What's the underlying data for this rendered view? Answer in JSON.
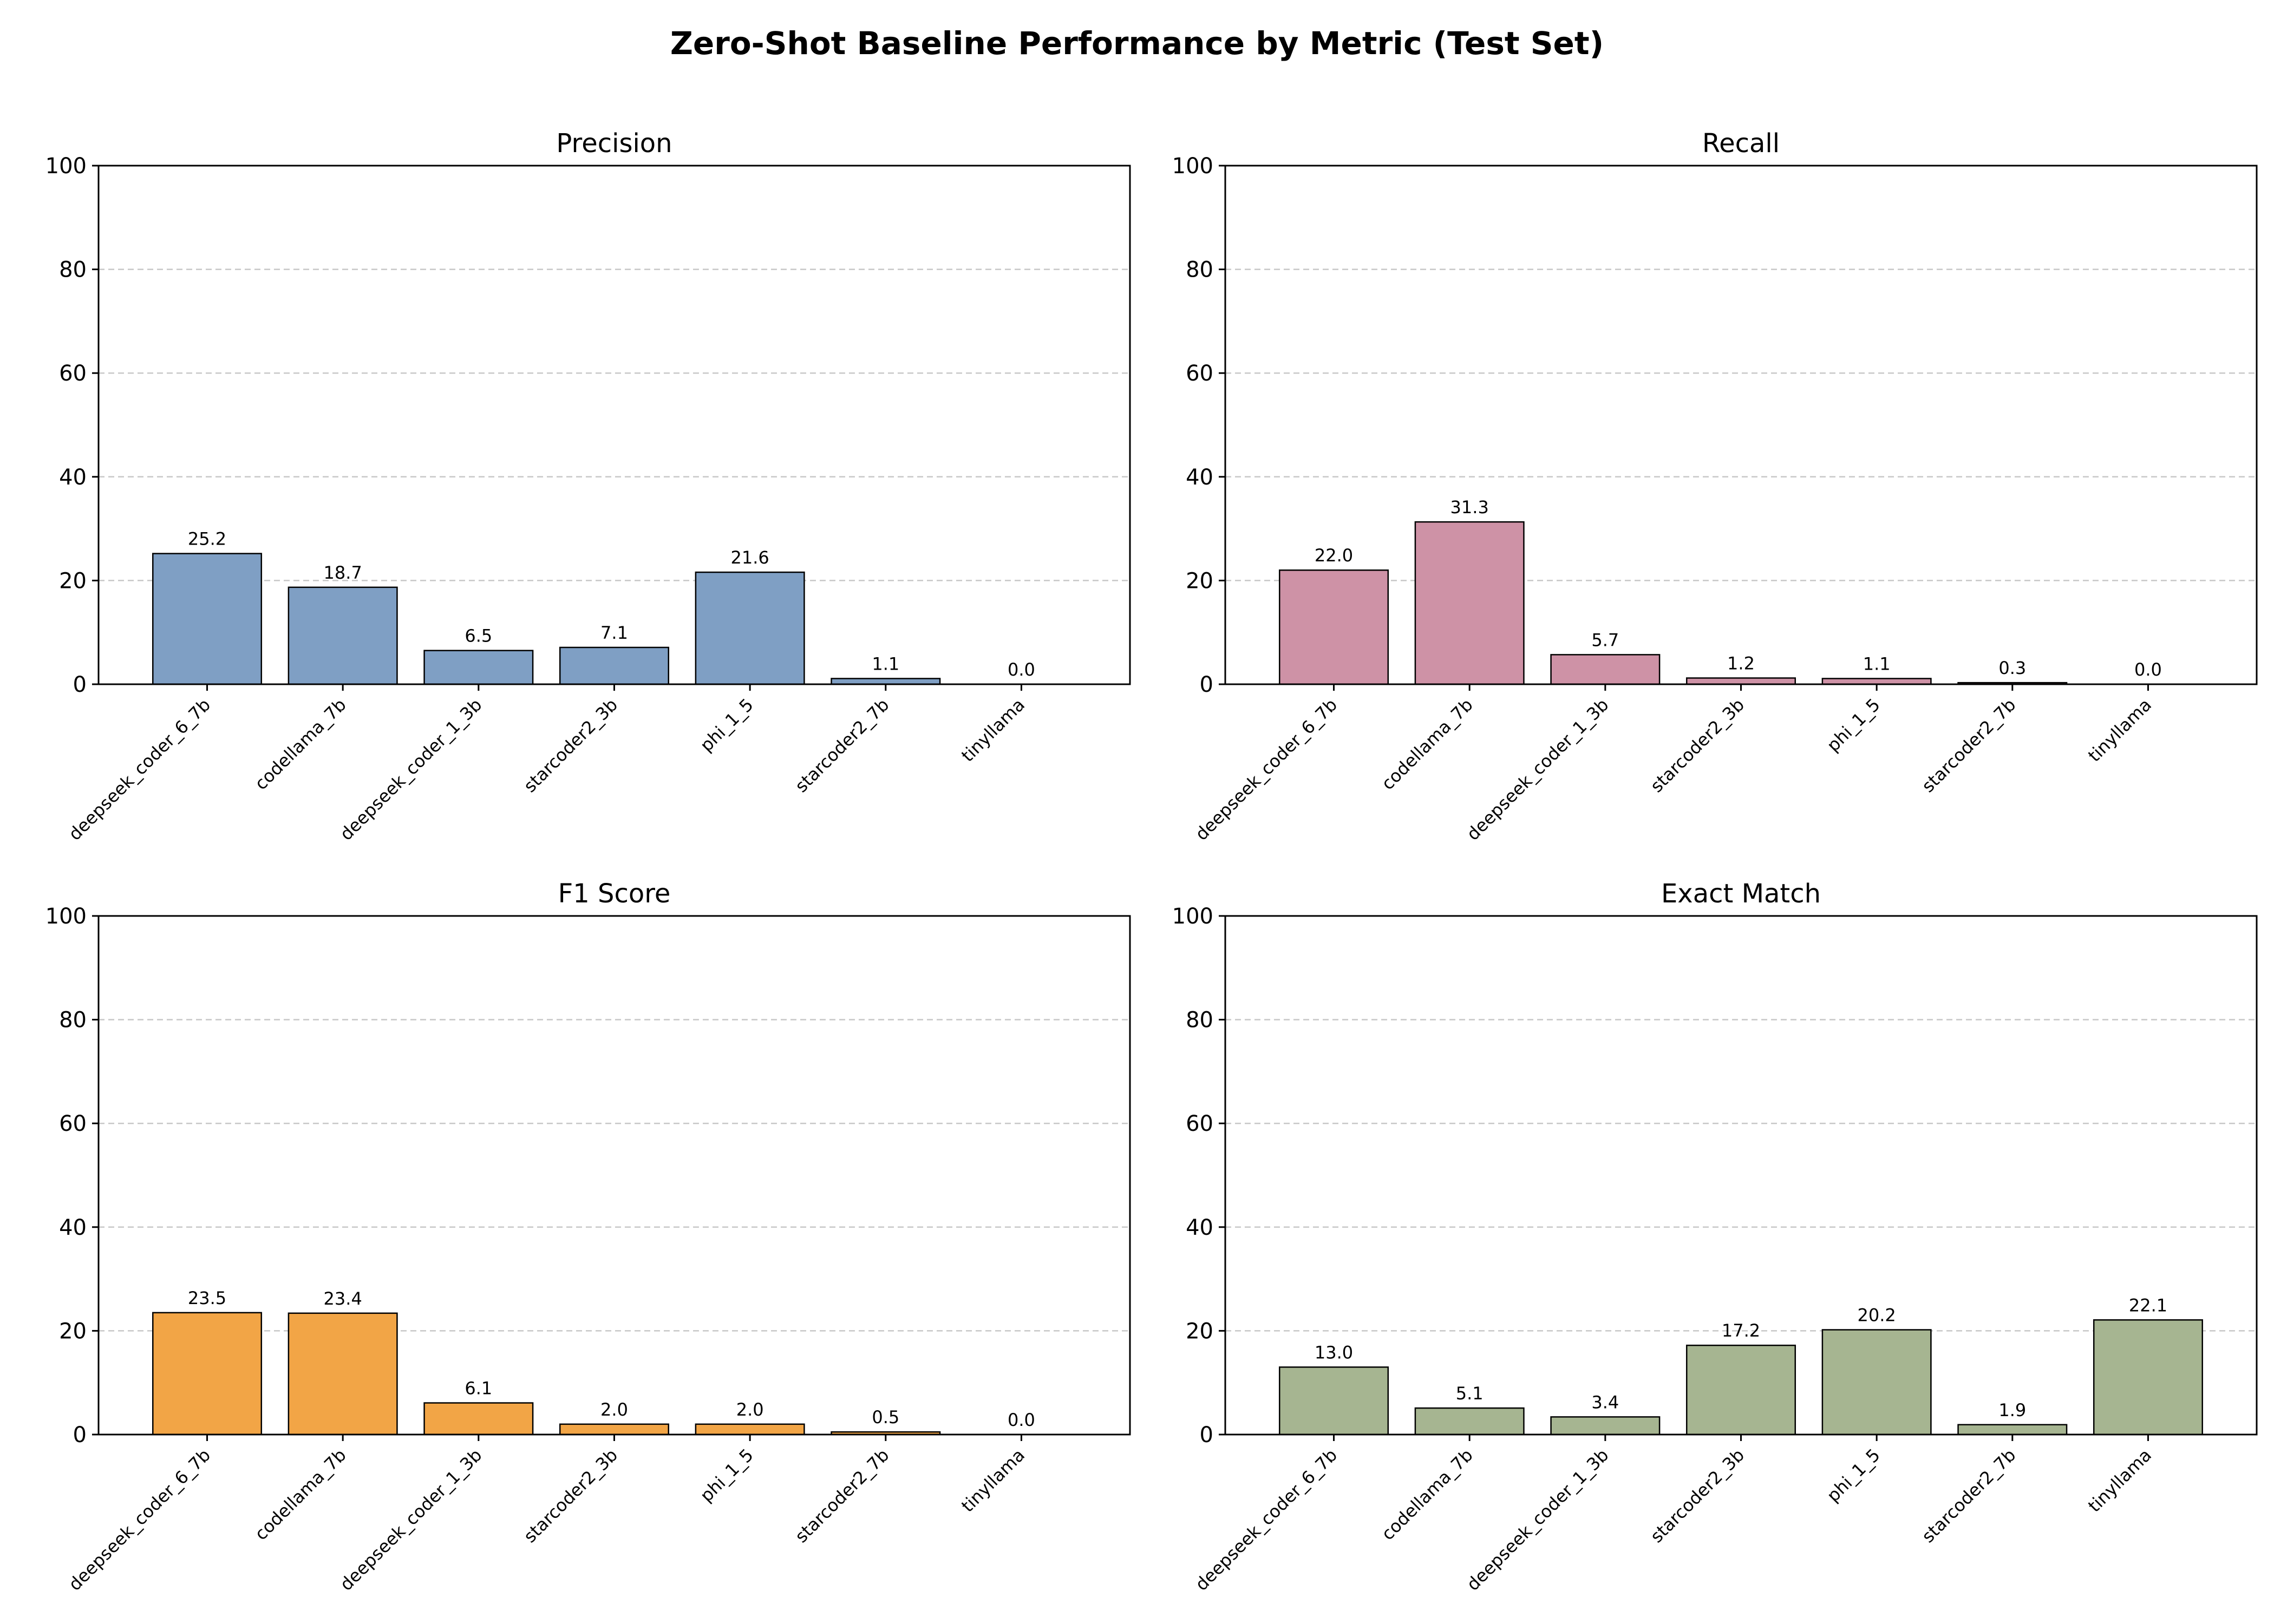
{
  "figure_title": "Zero-Shot Baseline Performance by Metric (Test Set)",
  "chart_data": [
    {
      "type": "bar",
      "title": "Precision",
      "categories": [
        "deepseek_coder_6_7b",
        "codellama_7b",
        "deepseek_coder_1_3b",
        "starcoder2_3b",
        "phi_1_5",
        "starcoder2_7b",
        "tinyllama"
      ],
      "values": [
        25.2,
        18.7,
        6.5,
        7.1,
        21.6,
        1.1,
        0.0
      ],
      "labels": [
        "25.2",
        "18.7",
        "6.5",
        "7.1",
        "21.6",
        "1.1",
        "0.0"
      ],
      "ylim": [
        0,
        100
      ],
      "yticks": [
        "0",
        "20",
        "40",
        "60",
        "80",
        "100"
      ],
      "grid": true,
      "color": "#7f9fc4"
    },
    {
      "type": "bar",
      "title": "Recall",
      "categories": [
        "deepseek_coder_6_7b",
        "codellama_7b",
        "deepseek_coder_1_3b",
        "starcoder2_3b",
        "phi_1_5",
        "starcoder2_7b",
        "tinyllama"
      ],
      "values": [
        22.0,
        31.3,
        5.7,
        1.2,
        1.1,
        0.3,
        0.0
      ],
      "labels": [
        "22.0",
        "31.3",
        "5.7",
        "1.2",
        "1.1",
        "0.3",
        "0.0"
      ],
      "ylim": [
        0,
        100
      ],
      "yticks": [
        "0",
        "20",
        "40",
        "60",
        "80",
        "100"
      ],
      "grid": true,
      "color": "#ce92a6"
    },
    {
      "type": "bar",
      "title": "F1 Score",
      "categories": [
        "deepseek_coder_6_7b",
        "codellama_7b",
        "deepseek_coder_1_3b",
        "starcoder2_3b",
        "phi_1_5",
        "starcoder2_7b",
        "tinyllama"
      ],
      "values": [
        23.5,
        23.4,
        6.1,
        2.0,
        2.0,
        0.5,
        0.0
      ],
      "labels": [
        "23.5",
        "23.4",
        "6.1",
        "2.0",
        "2.0",
        "0.5",
        "0.0"
      ],
      "ylim": [
        0,
        100
      ],
      "yticks": [
        "0",
        "20",
        "40",
        "60",
        "80",
        "100"
      ],
      "grid": true,
      "color": "#f2a546"
    },
    {
      "type": "bar",
      "title": "Exact Match",
      "categories": [
        "deepseek_coder_6_7b",
        "codellama_7b",
        "deepseek_coder_1_3b",
        "starcoder2_3b",
        "phi_1_5",
        "starcoder2_7b",
        "tinyllama"
      ],
      "values": [
        13.0,
        5.1,
        3.4,
        17.2,
        20.2,
        1.9,
        22.1
      ],
      "labels": [
        "13.0",
        "5.1",
        "3.4",
        "17.2",
        "20.2",
        "1.9",
        "22.1"
      ],
      "ylim": [
        0,
        100
      ],
      "yticks": [
        "0",
        "20",
        "40",
        "60",
        "80",
        "100"
      ],
      "grid": true,
      "color": "#a6b591"
    }
  ]
}
